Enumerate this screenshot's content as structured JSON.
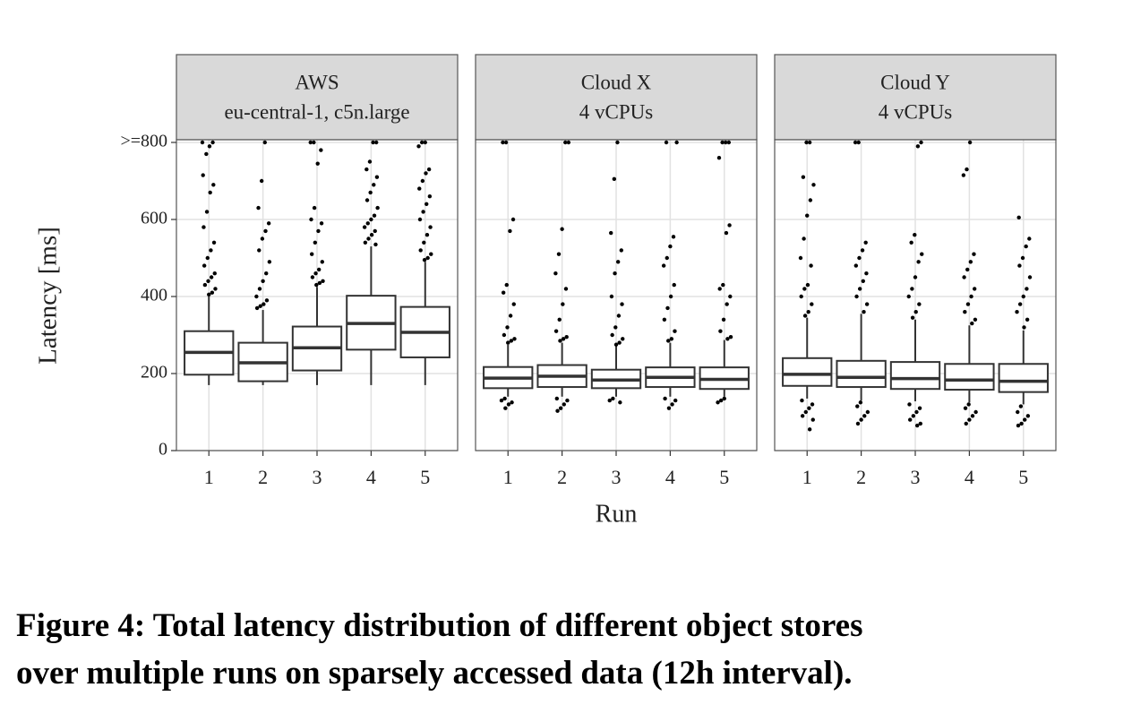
{
  "chart_data": {
    "type": "boxplot",
    "ylabel": "Latency [ms]",
    "xlabel": "Run",
    "categories": [
      "1",
      "2",
      "3",
      "4",
      "5"
    ],
    "ylim": [
      0,
      800
    ],
    "yticks": [
      0,
      200,
      400,
      600,
      {
        "value": 800,
        "label": ">=800"
      }
    ],
    "grid": true,
    "box_color": "#333333",
    "point_color": "#000000",
    "strip_color": "#d9d9d9",
    "panels": [
      {
        "title": "AWS",
        "subtitle": "eu-central-1, c5n.large",
        "boxes": [
          {
            "whislo": 170,
            "q1": 197,
            "med": 255,
            "q3": 310,
            "whishi": 400,
            "fliers": [
              800,
              800,
              790,
              770,
              715,
              690,
              670,
              620,
              580,
              540,
              520,
              500,
              480,
              460,
              450,
              440,
              430,
              420,
              410,
              405
            ]
          },
          {
            "whislo": 170,
            "q1": 180,
            "med": 228,
            "q3": 280,
            "whishi": 365,
            "fliers": [
              800,
              700,
              630,
              590,
              570,
              550,
              520,
              490,
              460,
              440,
              420,
              400,
              390,
              380,
              375,
              370
            ]
          },
          {
            "whislo": 170,
            "q1": 208,
            "med": 267,
            "q3": 322,
            "whishi": 425,
            "fliers": [
              800,
              800,
              780,
              745,
              630,
              600,
              590,
              570,
              540,
              510,
              490,
              470,
              460,
              450,
              440,
              435,
              430
            ]
          },
          {
            "whislo": 170,
            "q1": 262,
            "med": 330,
            "q3": 402,
            "whishi": 530,
            "fliers": [
              800,
              800,
              750,
              730,
              710,
              690,
              670,
              650,
              630,
              610,
              600,
              590,
              580,
              570,
              560,
              550,
              540,
              535
            ]
          },
          {
            "whislo": 170,
            "q1": 242,
            "med": 307,
            "q3": 373,
            "whishi": 490,
            "fliers": [
              800,
              800,
              790,
              730,
              720,
              700,
              680,
              660,
              640,
              620,
              600,
              580,
              560,
              540,
              520,
              510,
              500,
              495
            ]
          }
        ]
      },
      {
        "title": "Cloud X",
        "subtitle": "4 vCPUs",
        "boxes": [
          {
            "whislo": 140,
            "q1": 162,
            "med": 188,
            "q3": 217,
            "whishi": 275,
            "fliers": [
              800,
              800,
              600,
              570,
              430,
              410,
              380,
              350,
              320,
              300,
              290,
              285,
              280,
              135,
              130,
              125,
              120,
              110
            ]
          },
          {
            "whislo": 140,
            "q1": 165,
            "med": 193,
            "q3": 222,
            "whishi": 280,
            "fliers": [
              800,
              800,
              575,
              510,
              460,
              420,
              380,
              340,
              310,
              295,
              290,
              285,
              135,
              130,
              120,
              110,
              103
            ]
          },
          {
            "whislo": 140,
            "q1": 162,
            "med": 183,
            "q3": 210,
            "whishi": 272,
            "fliers": [
              800,
              705,
              565,
              520,
              490,
              460,
              400,
              380,
              350,
              320,
              300,
              290,
              280,
              275,
              135,
              130,
              125
            ]
          },
          {
            "whislo": 140,
            "q1": 165,
            "med": 190,
            "q3": 216,
            "whishi": 280,
            "fliers": [
              800,
              800,
              555,
              530,
              500,
              480,
              430,
              400,
              370,
              340,
              310,
              290,
              285,
              135,
              130,
              120,
              110
            ]
          },
          {
            "whislo": 140,
            "q1": 160,
            "med": 185,
            "q3": 216,
            "whishi": 287,
            "fliers": [
              800,
              800,
              800,
              760,
              585,
              565,
              430,
              420,
              400,
              380,
              340,
              310,
              295,
              290,
              135,
              130,
              125
            ]
          }
        ]
      },
      {
        "title": "Cloud Y",
        "subtitle": "4 vCPUs",
        "boxes": [
          {
            "whislo": 135,
            "q1": 168,
            "med": 198,
            "q3": 240,
            "whishi": 345,
            "fliers": [
              800,
              800,
              710,
              690,
              650,
              610,
              550,
              500,
              480,
              430,
              420,
              400,
              380,
              360,
              350,
              130,
              120,
              110,
              100,
              90,
              80,
              55
            ]
          },
          {
            "whislo": 130,
            "q1": 165,
            "med": 190,
            "q3": 233,
            "whishi": 355,
            "fliers": [
              800,
              800,
              540,
              520,
              500,
              480,
              460,
              440,
              420,
              400,
              380,
              360,
              125,
              115,
              100,
              90,
              80,
              70
            ]
          },
          {
            "whislo": 128,
            "q1": 160,
            "med": 187,
            "q3": 230,
            "whishi": 340,
            "fliers": [
              800,
              790,
              560,
              540,
              510,
              490,
              450,
              420,
              400,
              380,
              360,
              345,
              120,
              110,
              100,
              90,
              80,
              70,
              65
            ]
          },
          {
            "whislo": 125,
            "q1": 158,
            "med": 183,
            "q3": 225,
            "whishi": 325,
            "fliers": [
              800,
              730,
              715,
              510,
              490,
              470,
              450,
              420,
              400,
              380,
              360,
              340,
              330,
              120,
              110,
              100,
              90,
              80,
              70
            ]
          },
          {
            "whislo": 120,
            "q1": 152,
            "med": 180,
            "q3": 225,
            "whishi": 312,
            "fliers": [
              605,
              550,
              530,
              500,
              480,
              450,
              420,
              400,
              380,
              360,
              340,
              320,
              115,
              100,
              90,
              80,
              70,
              65
            ]
          }
        ]
      }
    ],
    "caption": [
      "Figure 4: Total latency distribution of different object stores",
      "over multiple runs on sparsely accessed data (12h interval)."
    ]
  }
}
